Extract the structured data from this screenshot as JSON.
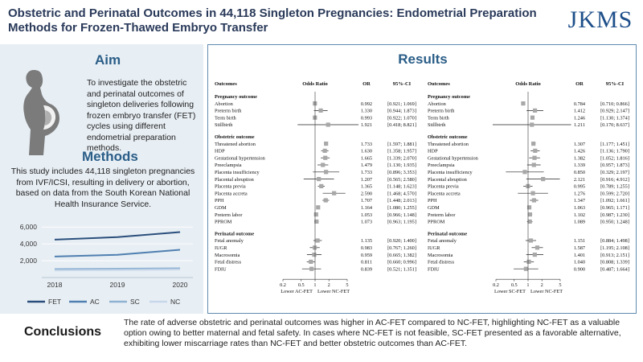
{
  "header": {
    "title": "Obstetric and Perinatal Outcomes in 44,118 Singleton Pregnancies: Endometrial Preparation Methods for Frozen-Thawed Embryo Transfer",
    "logo": "JKMS"
  },
  "aim": {
    "heading": "Aim",
    "text": "To investigate the obstetric and perinatal outcomes of singleton deliveries following frozen embryo transfer (FET) cycles using different endometrial preparation methods."
  },
  "methods": {
    "heading": "Methods",
    "text": "This study includes 44,118 singleton pregnancies from IVF/ICSI, resulting in delivery or abortion, based on data from the South Korean National Health Insurance Service."
  },
  "results": {
    "heading": "Results"
  },
  "conclusions": {
    "heading": "Conclusions",
    "text": "The rate of adverse obstetric and perinatal outcomes was higher in AC-FET compared to NC-FET, highlighting NC-FET as a valuable option owing to better maternal and fetal safety. In cases where NC-FET is not feasible, SC-FET presented as a favorable alternative, exhibiting lower miscarriage rates than NC-FET and better obstetric outcomes than AC-FET."
  },
  "colors": {
    "heading": "#2a5d87",
    "fet": "#2b4f7c",
    "ac": "#4f7fb0",
    "sc": "#8fb1d2",
    "nc": "#c8d8ea"
  },
  "chart_data": [
    {
      "type": "line",
      "x": [
        "2018",
        "2019",
        "2020"
      ],
      "yticks": [
        "6,000",
        "4,000",
        "2,000"
      ],
      "ylim": [
        0,
        6500
      ],
      "legend_position": "bottom",
      "series": [
        {
          "name": "FET",
          "values": [
            4500,
            4800,
            5400
          ]
        },
        {
          "name": "AC",
          "values": [
            2500,
            2700,
            3300
          ]
        },
        {
          "name": "SC",
          "values": [
            1000,
            1050,
            1100
          ]
        },
        {
          "name": "NC",
          "values": [
            850,
            900,
            950
          ]
        }
      ]
    },
    {
      "type": "forest",
      "headers": {
        "outcomes": "Outcomes",
        "or_label": "Odds Ratio",
        "or": "OR",
        "ci": "95%-CI"
      },
      "xticks": [
        "0.2",
        "0.5",
        "1",
        "2",
        "5"
      ],
      "xlabel_left": "Lower AC-FET",
      "xlabel_right": "Lower NC-FET",
      "groups": [
        {
          "label": "Pregnancy outcome",
          "rows": [
            {
              "name": "Abortion",
              "or": "0.992",
              "ci": "[0.921; 1.069]",
              "v": 0.992,
              "lo": 0.921,
              "hi": 1.069
            },
            {
              "name": "Preterm birth",
              "or": "1.330",
              "ci": "[0.944; 1.873]",
              "v": 1.33,
              "lo": 0.944,
              "hi": 1.873
            },
            {
              "name": "Term birth",
              "or": "0.993",
              "ci": "[0.922; 1.070]",
              "v": 0.993,
              "lo": 0.922,
              "hi": 1.07
            },
            {
              "name": "Stillbirth",
              "or": "1.921",
              "ci": "[0.418; 8.821]",
              "v": 1.921,
              "lo": 0.418,
              "hi": 8.821
            }
          ]
        },
        {
          "label": "Obstetric outcome",
          "rows": [
            {
              "name": "Threatened abortion",
              "or": "1.733",
              "ci": "[1.597; 1.881]",
              "v": 1.733,
              "lo": 1.597,
              "hi": 1.881
            },
            {
              "name": "HDP",
              "or": "1.630",
              "ci": "[1.358; 1.957]",
              "v": 1.63,
              "lo": 1.358,
              "hi": 1.957
            },
            {
              "name": "Gestational hypertension",
              "or": "1.665",
              "ci": "[1.339; 2.070]",
              "v": 1.665,
              "lo": 1.339,
              "hi": 2.07
            },
            {
              "name": "Preeclampsia",
              "or": "1.479",
              "ci": "[1.130; 1.935]",
              "v": 1.479,
              "lo": 1.13,
              "hi": 1.935
            },
            {
              "name": "Placenta insufficiency",
              "or": "1.733",
              "ci": "[0.896; 3.353]",
              "v": 1.733,
              "lo": 0.896,
              "hi": 3.353
            },
            {
              "name": "Placental abruption",
              "or": "1.207",
              "ci": "[0.565; 2.580]",
              "v": 1.207,
              "lo": 0.565,
              "hi": 2.58
            },
            {
              "name": "Placenta previa",
              "or": "1.365",
              "ci": "[1.148; 1.623]",
              "v": 1.365,
              "lo": 1.148,
              "hi": 1.623
            },
            {
              "name": "Placenta accreta",
              "or": "2.590",
              "ci": "[1.468; 4.570]",
              "v": 2.59,
              "lo": 1.468,
              "hi": 4.57
            },
            {
              "name": "PPH",
              "or": "1.707",
              "ci": "[1.448; 2.013]",
              "v": 1.707,
              "lo": 1.448,
              "hi": 2.013
            },
            {
              "name": "GDM",
              "or": "1.164",
              "ci": "[1.080; 1.255]",
              "v": 1.164,
              "lo": 1.08,
              "hi": 1.255
            },
            {
              "name": "Preterm labor",
              "or": "1.053",
              "ci": "[0.966; 1.148]",
              "v": 1.053,
              "lo": 0.966,
              "hi": 1.148
            },
            {
              "name": "PPROM",
              "or": "1.073",
              "ci": "[0.963; 1.195]",
              "v": 1.073,
              "lo": 0.963,
              "hi": 1.195
            }
          ]
        },
        {
          "label": "Perinatal outcome",
          "rows": [
            {
              "name": "Fetal anomaly",
              "or": "1.135",
              "ci": "[0.920; 1.400]",
              "v": 1.135,
              "lo": 0.92,
              "hi": 1.4
            },
            {
              "name": "IUGR",
              "or": "0.983",
              "ci": "[0.767; 1.260]",
              "v": 0.983,
              "lo": 0.767,
              "hi": 1.26
            },
            {
              "name": "Macrosomia",
              "or": "0.959",
              "ci": "[0.665; 1.382]",
              "v": 0.959,
              "lo": 0.665,
              "hi": 1.382
            },
            {
              "name": "Fetal distress",
              "or": "0.811",
              "ci": "[0.660; 0.996]",
              "v": 0.811,
              "lo": 0.66,
              "hi": 0.996
            },
            {
              "name": "FDIU",
              "or": "0.839",
              "ci": "[0.521; 1.351]",
              "v": 0.839,
              "lo": 0.521,
              "hi": 1.351
            }
          ]
        }
      ]
    },
    {
      "type": "forest",
      "headers": {
        "outcomes": "Outcomes",
        "or_label": "Odds Ratio",
        "or": "OR",
        "ci": "95%-CI"
      },
      "xticks": [
        "0.2",
        "0.5",
        "1",
        "2",
        "5"
      ],
      "xlabel_left": "Lower SC-FET",
      "xlabel_right": "Lower NC-FET",
      "groups": [
        {
          "label": "Pregnancy outcome",
          "rows": [
            {
              "name": "Abortion",
              "or": "0.784",
              "ci": "[0.710; 0.866]",
              "v": 0.784,
              "lo": 0.71,
              "hi": 0.866
            },
            {
              "name": "Preterm birth",
              "or": "1.412",
              "ci": "[0.929; 2.147]",
              "v": 1.412,
              "lo": 0.929,
              "hi": 2.147
            },
            {
              "name": "Term birth",
              "or": "1.246",
              "ci": "[1.130; 1.374]",
              "v": 1.246,
              "lo": 1.13,
              "hi": 1.374
            },
            {
              "name": "Stillbirth",
              "or": "1.211",
              "ci": "[0.170; 8.637]",
              "v": 1.211,
              "lo": 0.17,
              "hi": 8.637
            }
          ]
        },
        {
          "label": "Obstetric outcome",
          "rows": [
            {
              "name": "Threatened abortion",
              "or": "1.307",
              "ci": "[1.177; 1.451]",
              "v": 1.307,
              "lo": 1.177,
              "hi": 1.451
            },
            {
              "name": "HDP",
              "or": "1.426",
              "ci": "[1.136; 1.790]",
              "v": 1.426,
              "lo": 1.136,
              "hi": 1.79
            },
            {
              "name": "Gestational hypertension",
              "or": "1.382",
              "ci": "[1.052; 1.816]",
              "v": 1.382,
              "lo": 1.052,
              "hi": 1.816
            },
            {
              "name": "Preeclampsia",
              "or": "1.339",
              "ci": "[0.957; 1.873]",
              "v": 1.339,
              "lo": 0.957,
              "hi": 1.873
            },
            {
              "name": "Placenta insufficiency",
              "or": "0.850",
              "ci": "[0.329; 2.197]",
              "v": 0.85,
              "lo": 0.329,
              "hi": 2.197
            },
            {
              "name": "Placental abruption",
              "or": "2.121",
              "ci": "[0.916; 4.912]",
              "v": 2.121,
              "lo": 0.916,
              "hi": 4.912
            },
            {
              "name": "Placenta previa",
              "or": "0.995",
              "ci": "[0.789; 1.255]",
              "v": 0.995,
              "lo": 0.789,
              "hi": 1.255
            },
            {
              "name": "Placenta accreta",
              "or": "1.276",
              "ci": "[0.599; 2.720]",
              "v": 1.276,
              "lo": 0.599,
              "hi": 2.72
            },
            {
              "name": "PPH",
              "or": "1.347",
              "ci": "[1.092; 1.661]",
              "v": 1.347,
              "lo": 1.092,
              "hi": 1.661
            },
            {
              "name": "GDM",
              "or": "1.063",
              "ci": "[0.965; 1.171]",
              "v": 1.063,
              "lo": 0.965,
              "hi": 1.171
            },
            {
              "name": "Preterm labor",
              "or": "1.102",
              "ci": "[0.987; 1.230]",
              "v": 1.102,
              "lo": 0.987,
              "hi": 1.23
            },
            {
              "name": "PPROM",
              "or": "1.089",
              "ci": "[0.950; 1.248]",
              "v": 1.089,
              "lo": 0.95,
              "hi": 1.248
            }
          ]
        },
        {
          "label": "Perinatal outcome",
          "rows": [
            {
              "name": "Fetal anomaly",
              "or": "1.151",
              "ci": "[0.884; 1.498]",
              "v": 1.151,
              "lo": 0.884,
              "hi": 1.498
            },
            {
              "name": "IUGR",
              "or": "1.587",
              "ci": "[1.195; 2.108]",
              "v": 1.587,
              "lo": 1.195,
              "hi": 2.108
            },
            {
              "name": "Macrosomia",
              "or": "1.401",
              "ci": "[0.913; 2.151]",
              "v": 1.401,
              "lo": 0.913,
              "hi": 2.151
            },
            {
              "name": "Fetal distress",
              "or": "1.040",
              "ci": "[0.808; 1.339]",
              "v": 1.04,
              "lo": 0.808,
              "hi": 1.339
            },
            {
              "name": "FDIU",
              "or": "0.900",
              "ci": "[0.487; 1.664]",
              "v": 0.9,
              "lo": 0.487,
              "hi": 1.664
            }
          ]
        }
      ]
    }
  ]
}
